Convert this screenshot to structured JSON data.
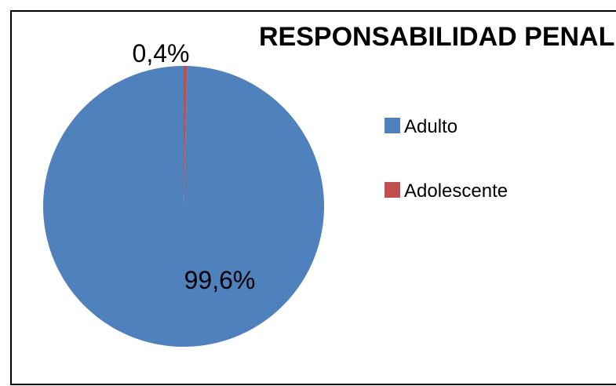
{
  "chart_data": {
    "type": "pie",
    "title": "RESPONSABILIDAD PENAL",
    "categories": [
      "Adulto",
      "Adolescente"
    ],
    "values": [
      99.6,
      0.4
    ],
    "labels": [
      "99,6%",
      "0,4%"
    ],
    "colors": [
      "#4F81BD",
      "#C0504D"
    ],
    "legend_position": "right"
  }
}
